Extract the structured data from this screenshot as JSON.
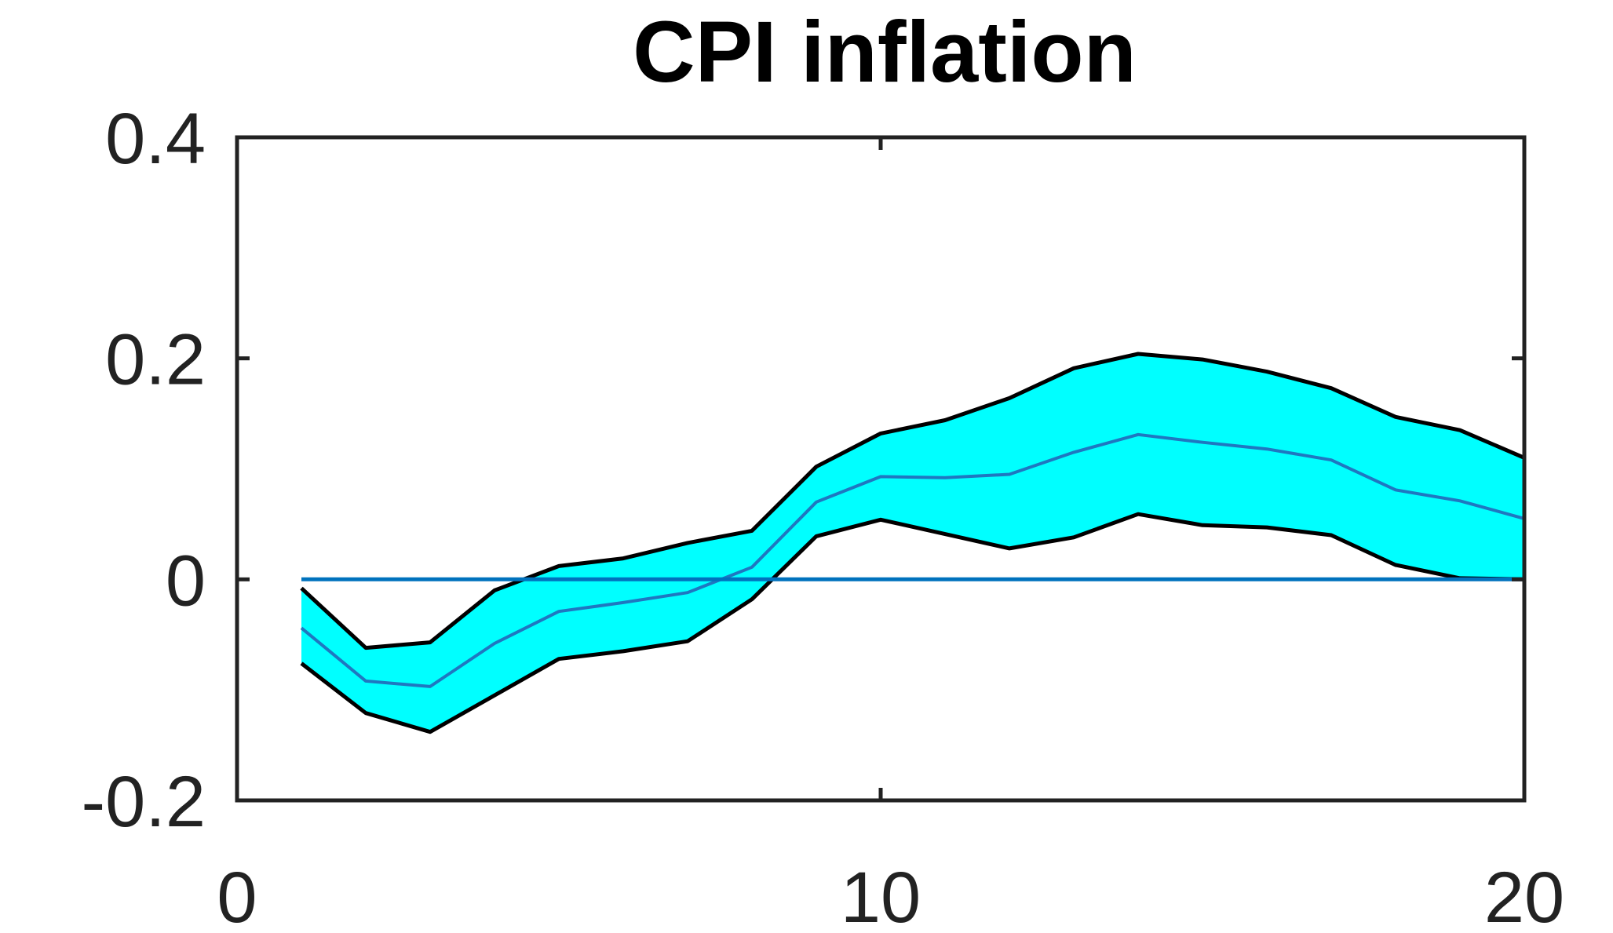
{
  "chart_data": {
    "type": "area",
    "title": "CPI inflation",
    "xlabel": "",
    "ylabel": "",
    "xlim": [
      0,
      20
    ],
    "ylim": [
      -0.2,
      0.4
    ],
    "xticks": [
      0,
      10,
      20
    ],
    "xtick_labels": [
      "0",
      "10",
      "20"
    ],
    "yticks": [
      -0.2,
      0,
      0.2,
      0.4
    ],
    "ytick_labels": [
      "-0.2",
      "0",
      "0.2",
      "0.4"
    ],
    "grid": false,
    "legend": "none",
    "x": [
      1,
      2,
      3,
      4,
      5,
      6,
      7,
      8,
      9,
      10,
      11,
      12,
      13,
      14,
      15,
      16,
      17,
      18,
      19,
      20
    ],
    "series": [
      {
        "role": "band-upper",
        "values": [
          -0.008,
          -0.062,
          -0.057,
          -0.01,
          0.012,
          0.019,
          0.033,
          0.044,
          0.102,
          0.132,
          0.144,
          0.164,
          0.191,
          0.204,
          0.199,
          0.188,
          0.173,
          0.147,
          0.135,
          0.11
        ]
      },
      {
        "role": "median",
        "values": [
          -0.044,
          -0.092,
          -0.097,
          -0.058,
          -0.029,
          -0.021,
          -0.012,
          0.011,
          0.07,
          0.093,
          0.092,
          0.095,
          0.115,
          0.131,
          0.124,
          0.118,
          0.108,
          0.081,
          0.071,
          0.055
        ]
      },
      {
        "role": "band-lower",
        "values": [
          -0.076,
          -0.121,
          -0.138,
          -0.105,
          -0.072,
          -0.065,
          -0.056,
          -0.018,
          0.039,
          0.054,
          0.041,
          0.028,
          0.038,
          0.059,
          0.049,
          0.047,
          0.04,
          0.013,
          0.001,
          0.0
        ]
      },
      {
        "role": "zero-line",
        "values": [
          0,
          0,
          0,
          0,
          0,
          0,
          0,
          0,
          0,
          0,
          0,
          0,
          0,
          0,
          0,
          0,
          0,
          0,
          0,
          0
        ]
      }
    ],
    "colors": {
      "band_fill": "#00FFFF",
      "band_edge": "#000000",
      "median_line": "#1F77C0",
      "zero_line": "#0072BD",
      "axes": "#222222"
    }
  }
}
